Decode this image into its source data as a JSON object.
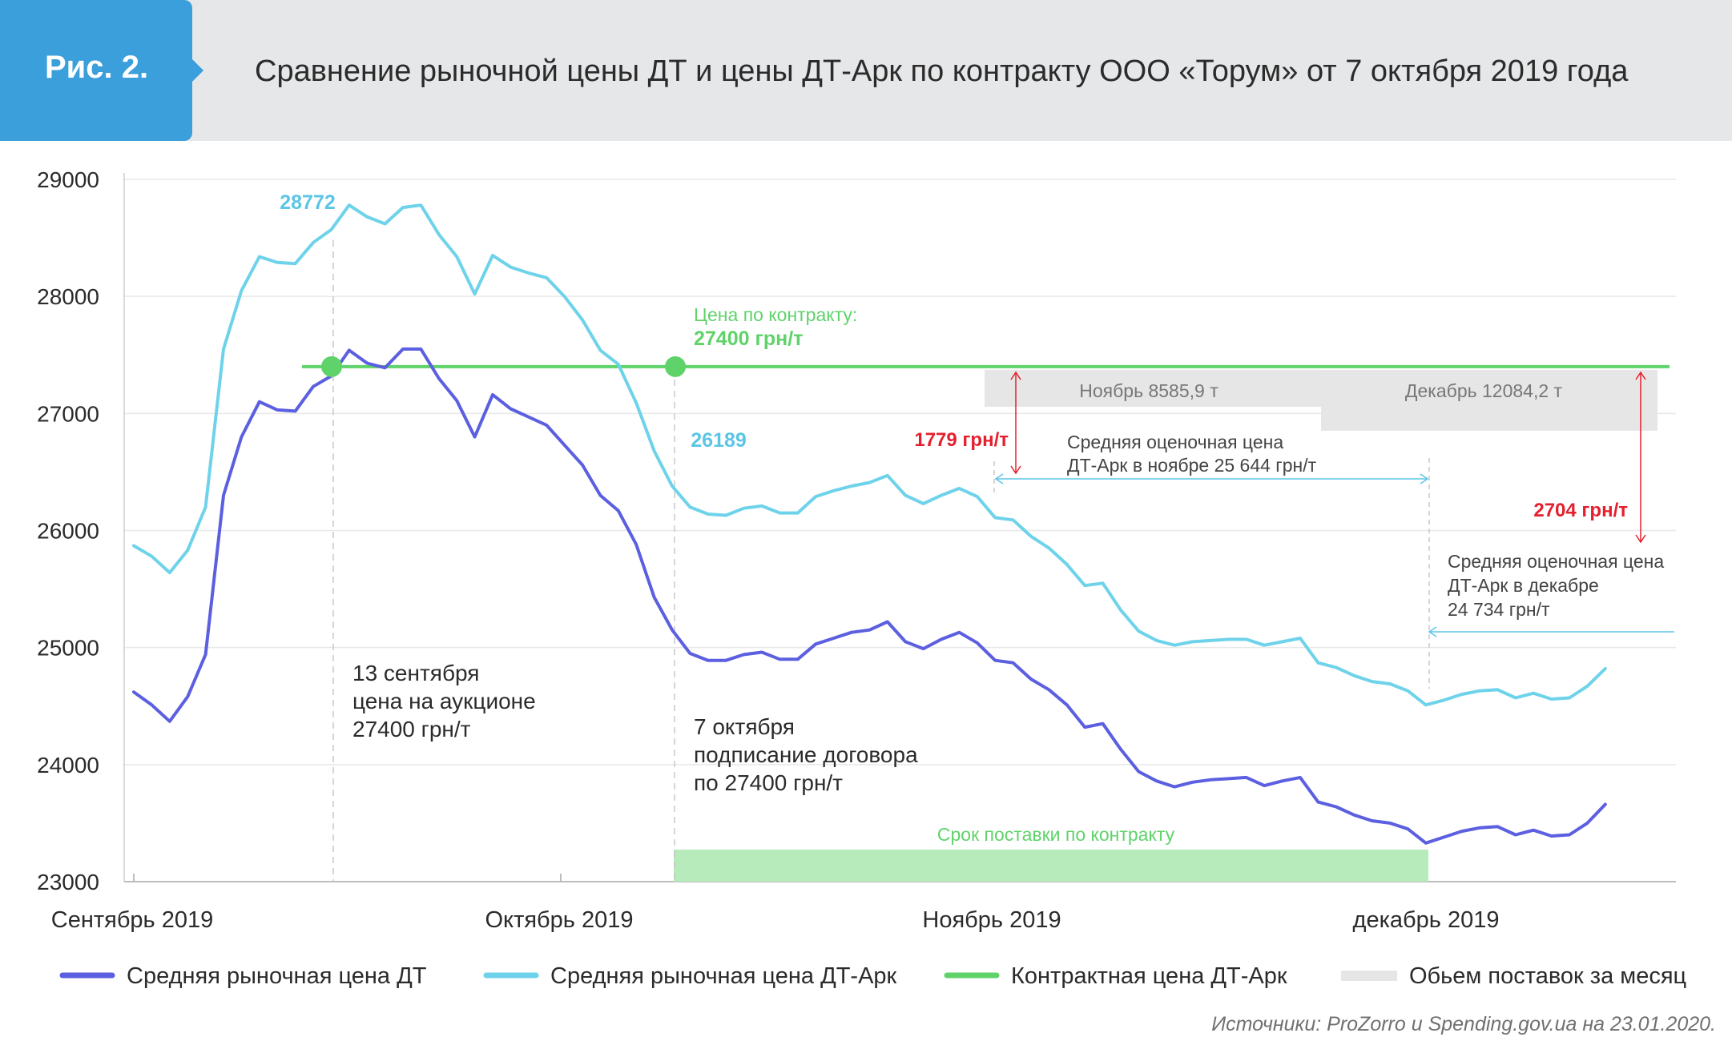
{
  "header": {
    "fig_label": "Рис. 2.",
    "title": "Сравнение рыночной цены ДТ и цены ДТ-Арк по контракту ООО «Торум» от 7 октября 2019 года"
  },
  "colors": {
    "dt": "#5b5fe0",
    "dt_ark": "#6ed3ea",
    "contract": "#5fd36a",
    "volume": "#e6e6e6",
    "delivery": "#b7ebbb",
    "red": "#e5202e",
    "blue_text": "#5bc5e6",
    "green_text": "#5fd36a",
    "text": "#2b2b2b",
    "grid": "#e8e8e8"
  },
  "chart_data": {
    "type": "line",
    "ylim": [
      23000,
      29000
    ],
    "yticks": [
      "29000",
      "28000",
      "27000",
      "26000",
      "25000",
      "24000",
      "23000"
    ],
    "month_labels": [
      "Сентябрь 2019",
      "Октябрь 2019",
      "Ноябрь 2019",
      "декабрь 2019"
    ],
    "series": [
      {
        "name": "Средняя рыночная цена ДТ",
        "values": [
          24620,
          24510,
          24370,
          24580,
          24940,
          26300,
          26800,
          27100,
          27030,
          27020,
          27230,
          27320,
          27540,
          27430,
          27390,
          27550,
          27550,
          27300,
          27110,
          26800,
          27160,
          27040,
          26970,
          26900,
          26730,
          26560,
          26300,
          26170,
          25880,
          25430,
          25150,
          24950,
          24890,
          24890,
          24940,
          24960,
          24900,
          24900,
          25030,
          25080,
          25130,
          25150,
          25220,
          25050,
          24990,
          25070,
          25130,
          25040,
          24890,
          24870,
          24730,
          24640,
          24510,
          24320,
          24350,
          24130,
          23940,
          23860,
          23810,
          23850,
          23870,
          23880,
          23890,
          23820,
          23860,
          23890,
          23680,
          23640,
          23570,
          23520,
          23500,
          23450,
          23330,
          23380,
          23430,
          23460,
          23470,
          23400,
          23440,
          23390,
          23400,
          23500,
          23660
        ]
      },
      {
        "name": "Средняя рыночная цена ДТ-Арк",
        "values": [
          25870,
          25780,
          25640,
          25830,
          26200,
          27550,
          28050,
          28340,
          28290,
          28280,
          28460,
          28570,
          28780,
          28680,
          28620,
          28760,
          28780,
          28530,
          28340,
          28020,
          28350,
          28250,
          28200,
          28160,
          28000,
          27800,
          27540,
          27420,
          27090,
          26680,
          26380,
          26200,
          26140,
          26130,
          26190,
          26210,
          26150,
          26150,
          26290,
          26340,
          26380,
          26410,
          26470,
          26300,
          26230,
          26300,
          26360,
          26290,
          26110,
          26090,
          25950,
          25850,
          25710,
          25530,
          25550,
          25320,
          25140,
          25060,
          25020,
          25050,
          25060,
          25070,
          25070,
          25020,
          25050,
          25080,
          24870,
          24830,
          24760,
          24710,
          24690,
          24630,
          24510,
          24550,
          24600,
          24630,
          24640,
          24570,
          24610,
          24560,
          24570,
          24670,
          24820
        ]
      },
      {
        "name": "Контрактная цена ДТ-Арк",
        "value": 27400
      }
    ],
    "legend": {
      "dt": "Средняя рыночная цена ДТ",
      "dt_ark": "Средняя рыночная цена ДТ-Арк",
      "contract": "Контрактная цена ДТ-Арк",
      "volume": "Обьем поставок за месяц"
    },
    "annotations": {
      "peak_value": "28772",
      "oct7_value": "26189",
      "contract_label": "Цена по контракту:",
      "contract_value": "27400 грн/т",
      "sep13_line1": "13 сентября",
      "sep13_line2": "цена на аукционе",
      "sep13_line3": "27400 грн/т",
      "oct7_line1": "7 октября",
      "oct7_line2": "подписание договора",
      "oct7_line3": "по 27400 грн/т",
      "delivery_label": "Срок поставки по контракту",
      "nov_volume": "Ноябрь 8585,9 т",
      "dec_volume": "Декабрь 12084,2 т",
      "nov_diff": "1779 грн/т",
      "dec_diff": "2704 грн/т",
      "nov_avg_line1": "Средняя оценочная цена",
      "nov_avg_line2": "ДТ-Арк в ноябре 25 644 грн/т",
      "dec_avg_line1": "Средняя оценочная цена",
      "dec_avg_line2": "ДТ-Арк в декабре",
      "dec_avg_line3": "24 734 грн/т"
    },
    "grid": true
  },
  "source": "Источники: ProZorro и Spending.gov.ua на 23.01.2020."
}
